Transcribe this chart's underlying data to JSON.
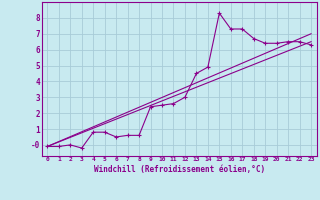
{
  "xlabel": "Windchill (Refroidissement éolien,°C)",
  "bg_color": "#c8eaf0",
  "line_color": "#8b008b",
  "grid_color": "#a8ccd8",
  "xlim": [
    -0.5,
    23.5
  ],
  "ylim": [
    -0.7,
    9.0
  ],
  "xtick_labels": [
    "0",
    "1",
    "2",
    "3",
    "4",
    "5",
    "6",
    "7",
    "8",
    "9",
    "10",
    "11",
    "12",
    "13",
    "14",
    "15",
    "16",
    "17",
    "18",
    "19",
    "20",
    "21",
    "22",
    "23"
  ],
  "xtick_vals": [
    0,
    1,
    2,
    3,
    4,
    5,
    6,
    7,
    8,
    9,
    10,
    11,
    12,
    13,
    14,
    15,
    16,
    17,
    18,
    19,
    20,
    21,
    22,
    23
  ],
  "ytick_vals": [
    0,
    1,
    2,
    3,
    4,
    5,
    6,
    7,
    8
  ],
  "ytick_labels": [
    "-0",
    "1",
    "2",
    "3",
    "4",
    "5",
    "6",
    "7",
    "8"
  ],
  "series1_x": [
    0,
    1,
    2,
    3,
    4,
    5,
    6,
    7,
    8,
    9,
    10,
    11,
    12,
    13,
    14,
    15,
    16,
    17,
    18,
    19,
    20,
    21,
    22,
    23
  ],
  "series1_y": [
    -0.1,
    -0.1,
    -0.0,
    -0.2,
    0.8,
    0.8,
    0.5,
    0.6,
    0.6,
    2.4,
    2.5,
    2.6,
    3.0,
    4.5,
    4.9,
    8.3,
    7.3,
    7.3,
    6.7,
    6.4,
    6.4,
    6.5,
    6.5,
    6.3
  ],
  "series2_x": [
    0,
    23
  ],
  "series2_y": [
    -0.1,
    6.5
  ],
  "series3_x": [
    0,
    23
  ],
  "series3_y": [
    -0.1,
    7.0
  ]
}
